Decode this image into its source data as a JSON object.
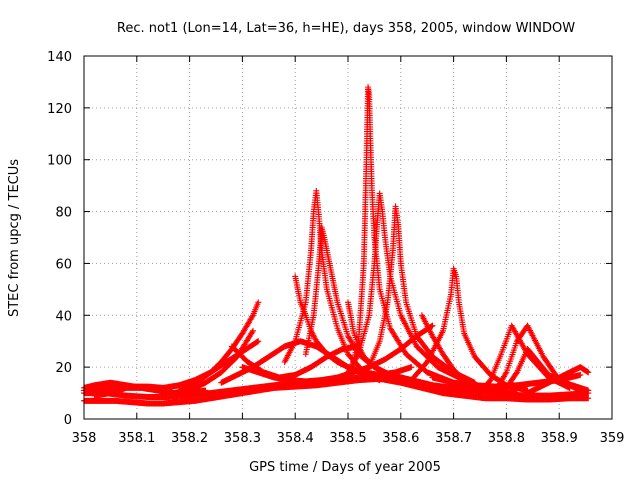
{
  "chart_data": {
    "type": "scatter",
    "title": "Rec. not1 (Lon=14, Lat=36, h=HE), days 358, 2005, window WINDOW",
    "xlabel": "GPS time / Days of year 2005",
    "ylabel": "STEC from upcg / TECUs",
    "xlim": [
      358,
      359
    ],
    "ylim": [
      0,
      140
    ],
    "x_ticks": [
      "358",
      "358.1",
      "358.2",
      "358.3",
      "358.4",
      "358.5",
      "358.6",
      "358.7",
      "358.8",
      "358.9",
      "359"
    ],
    "y_ticks": [
      "0",
      "20",
      "40",
      "60",
      "80",
      "100",
      "120",
      "140"
    ],
    "grid": true,
    "marker": "plus",
    "color": "#ff0000",
    "series": [
      {
        "x": [
          358.0,
          358.03,
          358.06,
          358.09,
          358.12,
          358.15,
          358.18,
          358.21,
          358.24,
          358.27,
          358.3,
          358.33,
          358.36,
          358.4,
          358.44,
          358.48,
          358.52,
          358.56,
          358.6,
          358.64,
          358.68,
          358.72,
          358.76,
          358.8,
          358.84,
          358.88,
          358.92,
          358.955
        ],
        "y": [
          7,
          7,
          7,
          6.5,
          6,
          6,
          6.5,
          7,
          8,
          9,
          10,
          11,
          12,
          12.5,
          13,
          14,
          15,
          15.5,
          14,
          12,
          10,
          9,
          8,
          8,
          7.5,
          7.5,
          8,
          8
        ]
      },
      {
        "x": [
          358.0,
          358.04,
          358.08,
          358.12,
          358.16,
          358.2,
          358.24,
          358.28,
          358.32,
          358.36,
          358.4,
          358.44,
          358.48,
          358.52,
          358.56,
          358.6,
          358.64,
          358.68,
          358.72,
          358.76,
          358.8,
          358.84,
          358.88,
          358.92,
          358.955
        ],
        "y": [
          10,
          10,
          9,
          8.5,
          8.5,
          9,
          10,
          11,
          12,
          13,
          14,
          14.5,
          15,
          16,
          17,
          16,
          14,
          12,
          11,
          10,
          9.5,
          9,
          9,
          9.5,
          10
        ]
      },
      {
        "x": [
          358.0,
          358.02,
          358.05,
          358.08,
          358.11,
          358.14,
          358.17,
          358.2,
          358.23
        ],
        "y": [
          12,
          13,
          14,
          13,
          12,
          11,
          10,
          10,
          11
        ]
      },
      {
        "x": [
          358.0,
          358.03,
          358.06,
          358.09,
          358.12,
          358.15,
          358.18,
          358.21,
          358.24,
          358.27,
          358.3,
          358.33
        ],
        "y": [
          11,
          11.5,
          12,
          12.5,
          12.5,
          12,
          13,
          15,
          18,
          22,
          26,
          30
        ]
      },
      {
        "x": [
          358.02,
          358.05,
          358.08,
          358.11,
          358.14,
          358.17,
          358.2,
          358.23,
          358.26,
          358.29,
          358.32
        ],
        "y": [
          9,
          10,
          12,
          12,
          11,
          10,
          11,
          14,
          18,
          24,
          34
        ]
      },
      {
        "x": [
          358.18,
          358.2,
          358.22,
          358.24,
          358.26,
          358.28,
          358.3,
          358.32,
          358.33
        ],
        "y": [
          12,
          13,
          15,
          18,
          22,
          27,
          33,
          40,
          45
        ]
      },
      {
        "x": [
          358.28,
          358.31,
          358.34,
          358.37,
          358.4,
          358.43,
          358.46,
          358.49,
          358.52
        ],
        "y": [
          28,
          22,
          18,
          16,
          17,
          20,
          24,
          27,
          28
        ]
      },
      {
        "x": [
          358.26,
          358.29,
          358.32,
          358.35,
          358.38,
          358.41,
          358.44,
          358.47,
          358.5,
          358.53,
          358.56,
          358.59,
          358.62
        ],
        "y": [
          14,
          17,
          20,
          24,
          28,
          30,
          28,
          24,
          20,
          18,
          17,
          18,
          20
        ]
      },
      {
        "x": [
          358.3,
          358.33,
          358.36,
          358.39,
          358.42,
          358.45,
          358.48,
          358.51,
          358.54,
          358.57,
          358.6,
          358.63,
          358.66
        ],
        "y": [
          20,
          18,
          16,
          15,
          14.5,
          15,
          16,
          18,
          20,
          23,
          27,
          32,
          36
        ]
      },
      {
        "x": [
          358.4,
          358.405,
          358.41,
          358.42,
          358.43,
          358.44,
          358.46,
          358.48,
          358.5,
          358.52,
          358.55
        ],
        "y": [
          55,
          50,
          45,
          40,
          34,
          30,
          25,
          22,
          20,
          18,
          17
        ]
      },
      {
        "x": [
          358.38,
          358.4,
          358.42,
          358.43,
          358.435,
          358.44,
          358.445,
          358.45,
          358.46,
          358.48,
          358.5,
          358.53,
          358.56
        ],
        "y": [
          22,
          30,
          45,
          65,
          80,
          88,
          78,
          65,
          50,
          35,
          25,
          18,
          15
        ]
      },
      {
        "x": [
          358.42,
          358.435,
          358.445,
          358.45,
          358.455,
          358.46,
          358.47,
          358.48,
          358.5,
          358.52,
          358.55,
          358.58,
          358.62
        ],
        "y": [
          25,
          40,
          60,
          74,
          70,
          65,
          55,
          45,
          32,
          25,
          20,
          17,
          15
        ]
      },
      {
        "x": [
          358.5,
          358.505,
          358.51,
          358.52,
          358.53,
          358.55,
          358.58,
          358.62,
          358.66,
          358.7,
          358.74
        ],
        "y": [
          45,
          40,
          34,
          28,
          24,
          20,
          17,
          15,
          13,
          12,
          11
        ]
      },
      {
        "x": [
          358.5,
          358.52,
          358.53,
          358.535,
          358.538,
          358.54,
          358.542,
          358.545,
          358.55,
          358.56,
          358.58,
          358.61,
          358.65,
          358.7,
          358.75
        ],
        "y": [
          15,
          30,
          60,
          100,
          128,
          125,
          110,
          90,
          70,
          50,
          35,
          25,
          18,
          14,
          12
        ]
      },
      {
        "x": [
          358.5,
          358.52,
          358.54,
          358.55,
          358.555,
          358.56,
          358.565,
          358.57,
          358.58,
          358.6,
          358.63,
          358.67,
          358.72
        ],
        "y": [
          18,
          25,
          40,
          60,
          75,
          87,
          80,
          70,
          55,
          40,
          28,
          20,
          15
        ]
      },
      {
        "x": [
          358.54,
          358.56,
          358.575,
          358.585,
          358.59,
          358.595,
          358.6,
          358.61,
          358.63,
          358.66,
          358.7,
          358.74
        ],
        "y": [
          20,
          30,
          45,
          65,
          82,
          75,
          60,
          45,
          32,
          24,
          18,
          14
        ]
      },
      {
        "x": [
          358.64,
          358.66,
          358.68,
          358.7,
          358.72,
          358.75,
          358.78,
          358.82
        ],
        "y": [
          40,
          32,
          25,
          19,
          15,
          12,
          11,
          10
        ]
      },
      {
        "x": [
          358.62,
          358.65,
          358.68,
          358.695,
          358.7,
          358.705,
          358.71,
          358.72,
          358.74,
          358.77,
          358.8,
          358.84
        ],
        "y": [
          15,
          22,
          34,
          48,
          58,
          55,
          45,
          33,
          24,
          17,
          13,
          11
        ]
      },
      {
        "x": [
          358.75,
          358.77,
          358.79,
          358.81,
          358.84,
          358.88,
          358.92
        ],
        "y": [
          10,
          15,
          25,
          36,
          25,
          16,
          12
        ]
      },
      {
        "x": [
          358.78,
          358.8,
          358.82,
          358.84,
          358.87,
          358.9,
          358.94
        ],
        "y": [
          11,
          18,
          30,
          36,
          24,
          15,
          11
        ]
      },
      {
        "x": [
          358.8,
          358.82,
          358.84,
          358.86,
          358.88,
          358.91,
          358.955
        ],
        "y": [
          12,
          18,
          27,
          22,
          17,
          14,
          11
        ]
      },
      {
        "x": [
          358.84,
          358.86,
          358.88,
          358.9,
          358.92,
          358.94,
          358.955
        ],
        "y": [
          10,
          12,
          14,
          16,
          18,
          20,
          18
        ]
      },
      {
        "x": [
          358.66,
          358.7,
          358.74,
          358.78,
          358.82,
          358.86,
          358.9,
          358.94
        ],
        "y": [
          16,
          14,
          13,
          12.5,
          13,
          14,
          15,
          17
        ]
      }
    ]
  }
}
